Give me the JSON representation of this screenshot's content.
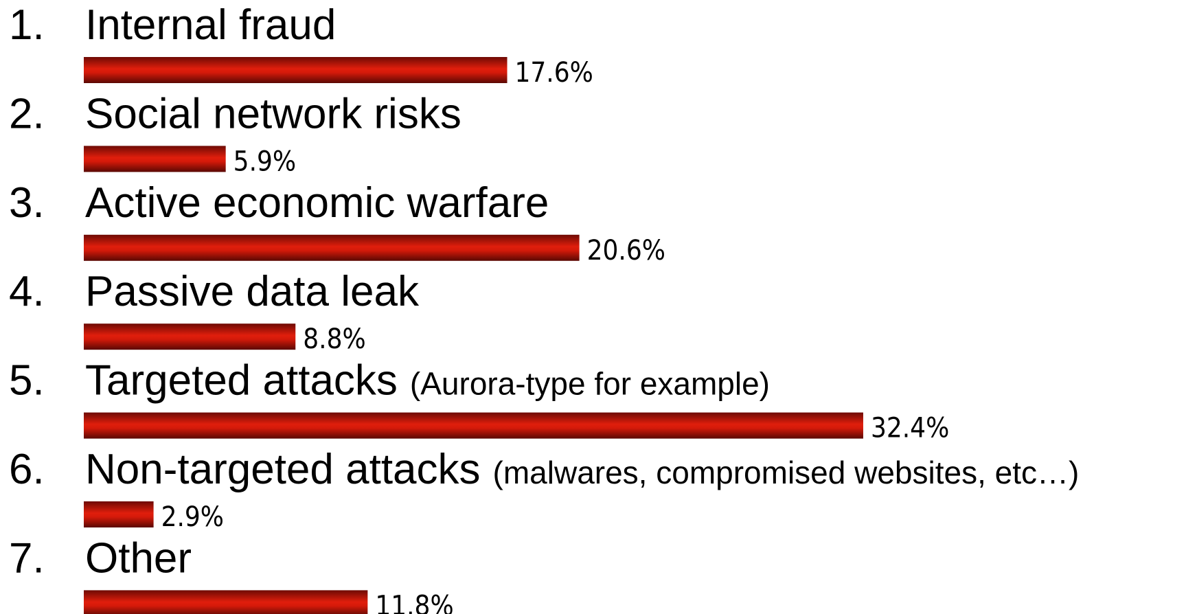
{
  "chart_data": {
    "type": "bar",
    "numbers": [
      "1.",
      "2.",
      "3.",
      "4.",
      "5.",
      "6.",
      "7."
    ],
    "categories": [
      "Internal fraud",
      "Social network risks",
      "Active economic warfare",
      "Passive data leak",
      "Targeted attacks",
      "Non-targeted attacks",
      "Other"
    ],
    "notes": [
      null,
      null,
      null,
      null,
      "(Aurora-type for example)",
      "(malwares, compromised websites, etc…)",
      null
    ],
    "values": [
      17.6,
      5.9,
      20.6,
      8.8,
      32.4,
      2.9,
      11.8
    ],
    "value_labels": [
      "17.6%",
      "5.9%",
      "20.6%",
      "8.8%",
      "32.4%",
      "2.9%",
      "11.8%"
    ],
    "color": "#d41a0a"
  }
}
